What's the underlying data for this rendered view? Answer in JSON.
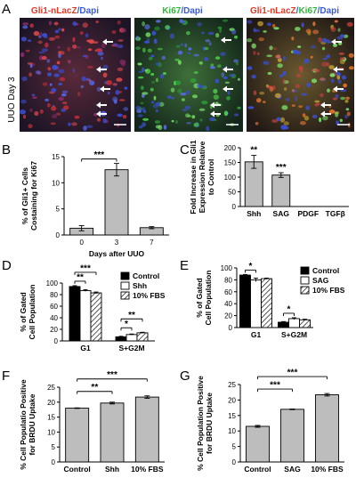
{
  "panels": {
    "A": {
      "letter": "A",
      "side_label": "UUO Day 3",
      "images": [
        {
          "title_parts": [
            {
              "text": "Gli1-nLacZ",
              "color": "#e03a2a"
            },
            {
              "text": "/",
              "color": "#3a5bd9"
            },
            {
              "text": "Dapi",
              "color": "#3a5bd9"
            }
          ]
        },
        {
          "title_parts": [
            {
              "text": "Ki67",
              "color": "#2fb83a"
            },
            {
              "text": "/",
              "color": "#3a5bd9"
            },
            {
              "text": "Dapi",
              "color": "#3a5bd9"
            }
          ]
        },
        {
          "title_parts": [
            {
              "text": "Gli1-nLacZ",
              "color": "#e03a2a"
            },
            {
              "text": "/",
              "color": "#3a5bd9"
            },
            {
              "text": "Ki67",
              "color": "#2fb83a"
            },
            {
              "text": "/",
              "color": "#3a5bd9"
            },
            {
              "text": "Dapi",
              "color": "#3a5bd9"
            }
          ]
        }
      ]
    },
    "B": {
      "letter": "B"
    },
    "C": {
      "letter": "C"
    },
    "D": {
      "letter": "D"
    },
    "E": {
      "letter": "E"
    },
    "F": {
      "letter": "F"
    },
    "G": {
      "letter": "G"
    }
  },
  "chart_data": [
    {
      "panel": "B",
      "type": "bar",
      "categories": [
        "0",
        "3",
        "7"
      ],
      "values": [
        1.3,
        12.5,
        1.4
      ],
      "errors": [
        0.5,
        1.2,
        0.2
      ],
      "xlabel": "Days after UUO",
      "ylabel": [
        "% of Gli1+ Cells",
        "Costaining for Ki67"
      ],
      "ylim": [
        0,
        15
      ],
      "yticks": [
        "0",
        "5",
        "10",
        "15"
      ],
      "significance": [
        {
          "from": 0,
          "to": 1,
          "label": "***"
        }
      ]
    },
    {
      "panel": "C",
      "type": "bar",
      "categories": [
        "Shh",
        "SAG",
        "PDGF",
        "TGFβ"
      ],
      "values": [
        152,
        107,
        0,
        0
      ],
      "errors": [
        22,
        8,
        0,
        0
      ],
      "xlabel": "",
      "ylabel": [
        "Fold Increase in Gli1",
        "Expression Relative",
        "to Control"
      ],
      "ylim": [
        0,
        200
      ],
      "yticks": [
        "0",
        "50",
        "100",
        "150",
        "200"
      ],
      "bar_labels": [
        "**",
        "***",
        "",
        ""
      ]
    },
    {
      "panel": "D",
      "type": "bar",
      "categories": [
        "G1",
        "S+G2M"
      ],
      "series": [
        {
          "name": "Control",
          "values": [
            94,
            7
          ],
          "errors": [
            1.5,
            1
          ]
        },
        {
          "name": "Shh",
          "values": [
            87,
            11
          ],
          "errors": [
            1.5,
            1
          ]
        },
        {
          "name": "10% FBS",
          "values": [
            83,
            14
          ],
          "errors": [
            1.5,
            1
          ]
        }
      ],
      "ylabel": [
        "% of Gated",
        "Cell Population"
      ],
      "ylim": [
        0,
        100
      ],
      "yticks": [
        "0",
        "20",
        "40",
        "60",
        "80",
        "100"
      ],
      "legend": "top-right",
      "significance": [
        {
          "group": 0,
          "from": 0,
          "to": 2,
          "level": 2,
          "label": "***"
        },
        {
          "group": 0,
          "from": 0,
          "to": 1,
          "level": 1,
          "label": "**"
        },
        {
          "group": 1,
          "from": 0,
          "to": 2,
          "level": 2,
          "label": "**"
        },
        {
          "group": 1,
          "from": 0,
          "to": 1,
          "level": 1,
          "label": "*"
        }
      ]
    },
    {
      "panel": "E",
      "type": "bar",
      "categories": [
        "G1",
        "S+G2M"
      ],
      "series": [
        {
          "name": "Control",
          "values": [
            88,
            9
          ],
          "errors": [
            1,
            1
          ]
        },
        {
          "name": "SAG",
          "values": [
            80,
            15
          ],
          "errors": [
            3,
            1.5
          ]
        },
        {
          "name": "10% FBS",
          "values": [
            82,
            13
          ],
          "errors": [
            1,
            1
          ]
        }
      ],
      "ylabel": [
        "% of Gated",
        "Cell Population"
      ],
      "ylim": [
        0,
        100
      ],
      "yticks": [
        "0",
        "20",
        "40",
        "60",
        "80",
        "100"
      ],
      "legend": "top-right",
      "significance": [
        {
          "group": 0,
          "from": 0,
          "to": 1,
          "level": 1,
          "label": "*"
        },
        {
          "group": 1,
          "from": 0,
          "to": 1,
          "level": 1,
          "label": "*"
        }
      ]
    },
    {
      "panel": "F",
      "type": "bar",
      "categories": [
        "Control",
        "Shh",
        "10% FBS"
      ],
      "values": [
        18,
        19.7,
        21.7
      ],
      "errors": [
        0.1,
        0.3,
        0.4
      ],
      "ylabel": [
        "% Cell Populatio Positive",
        "for BRDU Uptake"
      ],
      "ylim": [
        0,
        25
      ],
      "yticks": [
        "0",
        "5",
        "10",
        "15",
        "20",
        "25"
      ],
      "significance": [
        {
          "from": 0,
          "to": 2,
          "level": 2,
          "label": "***"
        },
        {
          "from": 0,
          "to": 1,
          "level": 1,
          "label": "**"
        }
      ]
    },
    {
      "panel": "G",
      "type": "bar",
      "categories": [
        "Control",
        "SAG",
        "10% FBS"
      ],
      "values": [
        11.5,
        17,
        21.7
      ],
      "errors": [
        0.3,
        0.1,
        0.4
      ],
      "ylabel": [
        "% Cell Population Positive",
        "for BRDU Uptake"
      ],
      "ylim": [
        0,
        25
      ],
      "yticks": [
        "0",
        "5",
        "10",
        "15",
        "20",
        "25"
      ],
      "significance": [
        {
          "from": 0,
          "to": 2,
          "level": 2,
          "label": "***"
        },
        {
          "from": 0,
          "to": 1,
          "level": 1,
          "label": "***"
        }
      ]
    }
  ]
}
